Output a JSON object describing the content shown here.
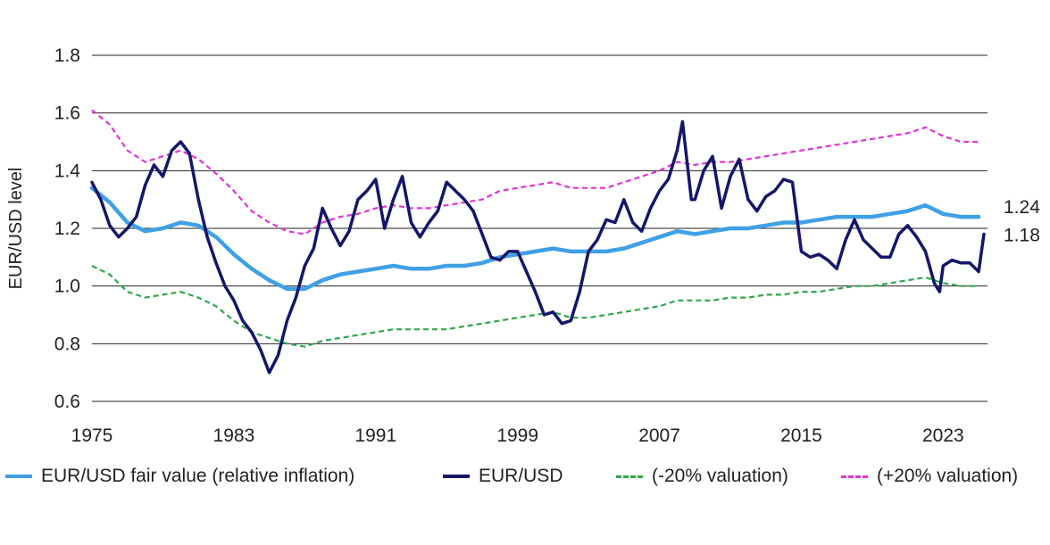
{
  "chart_data": {
    "type": "line",
    "title": "",
    "xlabel": "",
    "ylabel": "EUR/USD level",
    "xlim": [
      1975,
      2025.5
    ],
    "ylim": [
      0.6,
      1.8
    ],
    "x_ticks": [
      "1975",
      "1983",
      "1991",
      "1999",
      "2007",
      "2015",
      "2023"
    ],
    "y_ticks": [
      "0.6",
      "0.8",
      "1.0",
      "1.2",
      "1.4",
      "1.6",
      "1.8"
    ],
    "grid": "horizontal",
    "legend_position": "bottom",
    "end_labels": [
      {
        "series": "EUR/USD fair value (relative inflation)",
        "label": "1.24"
      },
      {
        "series": "EUR/USD",
        "label": "1.18"
      }
    ],
    "series": [
      {
        "name": "(+20% valuation)",
        "style": "dashed",
        "color": "#e033d6",
        "points": [
          [
            1975,
            1.61
          ],
          [
            1976,
            1.56
          ],
          [
            1977,
            1.47
          ],
          [
            1978,
            1.43
          ],
          [
            1979,
            1.45
          ],
          [
            1980,
            1.47
          ],
          [
            1981,
            1.44
          ],
          [
            1982,
            1.39
          ],
          [
            1983,
            1.33
          ],
          [
            1984,
            1.26
          ],
          [
            1985,
            1.22
          ],
          [
            1986,
            1.19
          ],
          [
            1987,
            1.18
          ],
          [
            1988,
            1.22
          ],
          [
            1989,
            1.24
          ],
          [
            1990,
            1.25
          ],
          [
            1991,
            1.27
          ],
          [
            1992,
            1.28
          ],
          [
            1993,
            1.27
          ],
          [
            1994,
            1.27
          ],
          [
            1995,
            1.28
          ],
          [
            1996,
            1.29
          ],
          [
            1997,
            1.3
          ],
          [
            1998,
            1.33
          ],
          [
            1999,
            1.34
          ],
          [
            2000,
            1.35
          ],
          [
            2001,
            1.36
          ],
          [
            2002,
            1.34
          ],
          [
            2003,
            1.34
          ],
          [
            2004,
            1.34
          ],
          [
            2005,
            1.36
          ],
          [
            2006,
            1.38
          ],
          [
            2007,
            1.4
          ],
          [
            2008,
            1.43
          ],
          [
            2009,
            1.42
          ],
          [
            2010,
            1.43
          ],
          [
            2011,
            1.43
          ],
          [
            2012,
            1.44
          ],
          [
            2013,
            1.45
          ],
          [
            2014,
            1.46
          ],
          [
            2015,
            1.47
          ],
          [
            2016,
            1.48
          ],
          [
            2017,
            1.49
          ],
          [
            2018,
            1.5
          ],
          [
            2019,
            1.51
          ],
          [
            2020,
            1.52
          ],
          [
            2021,
            1.53
          ],
          [
            2022,
            1.55
          ],
          [
            2023,
            1.52
          ],
          [
            2024,
            1.5
          ],
          [
            2025,
            1.5
          ]
        ]
      },
      {
        "name": "(-20% valuation)",
        "style": "dashed",
        "color": "#2ea84a",
        "points": [
          [
            1975,
            1.07
          ],
          [
            1976,
            1.04
          ],
          [
            1977,
            0.98
          ],
          [
            1978,
            0.96
          ],
          [
            1979,
            0.97
          ],
          [
            1980,
            0.98
          ],
          [
            1981,
            0.96
          ],
          [
            1982,
            0.93
          ],
          [
            1983,
            0.88
          ],
          [
            1984,
            0.84
          ],
          [
            1985,
            0.82
          ],
          [
            1986,
            0.8
          ],
          [
            1987,
            0.79
          ],
          [
            1988,
            0.81
          ],
          [
            1989,
            0.82
          ],
          [
            1990,
            0.83
          ],
          [
            1991,
            0.84
          ],
          [
            1992,
            0.85
          ],
          [
            1993,
            0.85
          ],
          [
            1994,
            0.85
          ],
          [
            1995,
            0.85
          ],
          [
            1996,
            0.86
          ],
          [
            1997,
            0.87
          ],
          [
            1998,
            0.88
          ],
          [
            1999,
            0.89
          ],
          [
            2000,
            0.9
          ],
          [
            2001,
            0.91
          ],
          [
            2002,
            0.89
          ],
          [
            2003,
            0.89
          ],
          [
            2004,
            0.9
          ],
          [
            2005,
            0.91
          ],
          [
            2006,
            0.92
          ],
          [
            2007,
            0.93
          ],
          [
            2008,
            0.95
          ],
          [
            2009,
            0.95
          ],
          [
            2010,
            0.95
          ],
          [
            2011,
            0.96
          ],
          [
            2012,
            0.96
          ],
          [
            2013,
            0.97
          ],
          [
            2014,
            0.97
          ],
          [
            2015,
            0.98
          ],
          [
            2016,
            0.98
          ],
          [
            2017,
            0.99
          ],
          [
            2018,
            1.0
          ],
          [
            2019,
            1.0
          ],
          [
            2020,
            1.01
          ],
          [
            2021,
            1.02
          ],
          [
            2022,
            1.03
          ],
          [
            2023,
            1.01
          ],
          [
            2024,
            1.0
          ],
          [
            2025,
            1.0
          ]
        ]
      },
      {
        "name": "EUR/USD fair value (relative inflation)",
        "style": "solid",
        "color": "#3fa0e6",
        "points": [
          [
            1975,
            1.34
          ],
          [
            1976,
            1.29
          ],
          [
            1977,
            1.22
          ],
          [
            1978,
            1.19
          ],
          [
            1979,
            1.2
          ],
          [
            1980,
            1.22
          ],
          [
            1981,
            1.21
          ],
          [
            1982,
            1.17
          ],
          [
            1983,
            1.11
          ],
          [
            1984,
            1.06
          ],
          [
            1985,
            1.02
          ],
          [
            1986,
            0.99
          ],
          [
            1987,
            0.99
          ],
          [
            1988,
            1.02
          ],
          [
            1989,
            1.04
          ],
          [
            1990,
            1.05
          ],
          [
            1991,
            1.06
          ],
          [
            1992,
            1.07
          ],
          [
            1993,
            1.06
          ],
          [
            1994,
            1.06
          ],
          [
            1995,
            1.07
          ],
          [
            1996,
            1.07
          ],
          [
            1997,
            1.08
          ],
          [
            1998,
            1.1
          ],
          [
            1999,
            1.11
          ],
          [
            2000,
            1.12
          ],
          [
            2001,
            1.13
          ],
          [
            2002,
            1.12
          ],
          [
            2003,
            1.12
          ],
          [
            2004,
            1.12
          ],
          [
            2005,
            1.13
          ],
          [
            2006,
            1.15
          ],
          [
            2007,
            1.17
          ],
          [
            2008,
            1.19
          ],
          [
            2009,
            1.18
          ],
          [
            2010,
            1.19
          ],
          [
            2011,
            1.2
          ],
          [
            2012,
            1.2
          ],
          [
            2013,
            1.21
          ],
          [
            2014,
            1.22
          ],
          [
            2015,
            1.22
          ],
          [
            2016,
            1.23
          ],
          [
            2017,
            1.24
          ],
          [
            2018,
            1.24
          ],
          [
            2019,
            1.24
          ],
          [
            2020,
            1.25
          ],
          [
            2021,
            1.26
          ],
          [
            2022,
            1.28
          ],
          [
            2023,
            1.25
          ],
          [
            2024,
            1.24
          ],
          [
            2025,
            1.24
          ]
        ]
      },
      {
        "name": "EUR/USD",
        "style": "solid",
        "color": "#14166b",
        "points": [
          [
            1975,
            1.36
          ],
          [
            1975.5,
            1.3
          ],
          [
            1976,
            1.21
          ],
          [
            1976.5,
            1.17
          ],
          [
            1977,
            1.2
          ],
          [
            1977.5,
            1.24
          ],
          [
            1978,
            1.35
          ],
          [
            1978.5,
            1.42
          ],
          [
            1979,
            1.38
          ],
          [
            1979.5,
            1.47
          ],
          [
            1980,
            1.5
          ],
          [
            1980.5,
            1.46
          ],
          [
            1981,
            1.3
          ],
          [
            1981.5,
            1.17
          ],
          [
            1982,
            1.08
          ],
          [
            1982.5,
            1.0
          ],
          [
            1983,
            0.95
          ],
          [
            1983.5,
            0.88
          ],
          [
            1984,
            0.84
          ],
          [
            1984.5,
            0.78
          ],
          [
            1985,
            0.7
          ],
          [
            1985.5,
            0.76
          ],
          [
            1986,
            0.88
          ],
          [
            1986.5,
            0.96
          ],
          [
            1987,
            1.07
          ],
          [
            1987.5,
            1.13
          ],
          [
            1988,
            1.27
          ],
          [
            1988.5,
            1.2
          ],
          [
            1989,
            1.14
          ],
          [
            1989.5,
            1.19
          ],
          [
            1990,
            1.3
          ],
          [
            1990.5,
            1.33
          ],
          [
            1991,
            1.37
          ],
          [
            1991.5,
            1.2
          ],
          [
            1992,
            1.3
          ],
          [
            1992.5,
            1.38
          ],
          [
            1993,
            1.22
          ],
          [
            1993.5,
            1.17
          ],
          [
            1994,
            1.22
          ],
          [
            1994.5,
            1.26
          ],
          [
            1995,
            1.36
          ],
          [
            1995.5,
            1.33
          ],
          [
            1996,
            1.3
          ],
          [
            1996.5,
            1.26
          ],
          [
            1997,
            1.18
          ],
          [
            1997.5,
            1.1
          ],
          [
            1998,
            1.09
          ],
          [
            1998.5,
            1.12
          ],
          [
            1999,
            1.12
          ],
          [
            1999.5,
            1.05
          ],
          [
            2000,
            0.98
          ],
          [
            2000.5,
            0.9
          ],
          [
            2001,
            0.91
          ],
          [
            2001.5,
            0.87
          ],
          [
            2002,
            0.88
          ],
          [
            2002.5,
            0.98
          ],
          [
            2003,
            1.12
          ],
          [
            2003.5,
            1.16
          ],
          [
            2004,
            1.23
          ],
          [
            2004.5,
            1.22
          ],
          [
            2005,
            1.3
          ],
          [
            2005.5,
            1.22
          ],
          [
            2006,
            1.19
          ],
          [
            2006.5,
            1.27
          ],
          [
            2007,
            1.33
          ],
          [
            2007.5,
            1.37
          ],
          [
            2008,
            1.47
          ],
          [
            2008.3,
            1.57
          ],
          [
            2008.8,
            1.3
          ],
          [
            2009,
            1.3
          ],
          [
            2009.5,
            1.4
          ],
          [
            2010,
            1.45
          ],
          [
            2010.5,
            1.27
          ],
          [
            2011,
            1.38
          ],
          [
            2011.5,
            1.44
          ],
          [
            2012,
            1.3
          ],
          [
            2012.5,
            1.26
          ],
          [
            2013,
            1.31
          ],
          [
            2013.5,
            1.33
          ],
          [
            2014,
            1.37
          ],
          [
            2014.5,
            1.36
          ],
          [
            2015,
            1.12
          ],
          [
            2015.5,
            1.1
          ],
          [
            2016,
            1.11
          ],
          [
            2016.5,
            1.09
          ],
          [
            2017,
            1.06
          ],
          [
            2017.5,
            1.16
          ],
          [
            2018,
            1.23
          ],
          [
            2018.5,
            1.16
          ],
          [
            2019,
            1.13
          ],
          [
            2019.5,
            1.1
          ],
          [
            2020,
            1.1
          ],
          [
            2020.5,
            1.18
          ],
          [
            2021,
            1.21
          ],
          [
            2021.5,
            1.17
          ],
          [
            2022,
            1.12
          ],
          [
            2022.5,
            1.01
          ],
          [
            2022.8,
            0.98
          ],
          [
            2023,
            1.07
          ],
          [
            2023.5,
            1.09
          ],
          [
            2024,
            1.08
          ],
          [
            2024.5,
            1.08
          ],
          [
            2025,
            1.05
          ],
          [
            2025.3,
            1.18
          ]
        ]
      }
    ]
  }
}
